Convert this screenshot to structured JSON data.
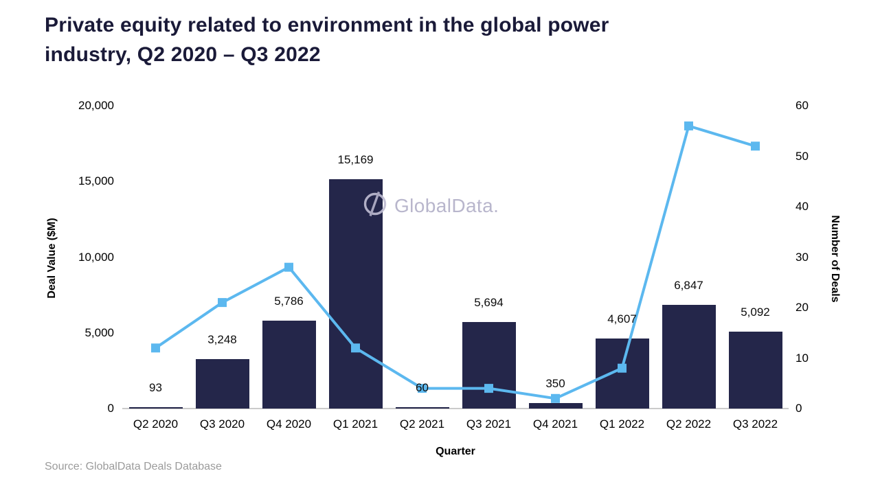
{
  "title": {
    "line1": "Private equity related to environment in the global power",
    "line2": "industry, Q2 2020 – Q3 2022"
  },
  "watermark": {
    "icon": "globaldata-circle-slash-logo",
    "text": "GlobalData."
  },
  "source_note": "Source: GlobalData Deals Database",
  "colors": {
    "bar": "#24264a",
    "line": "#5cb8ef",
    "title_text": "#1a1a38",
    "axis_line": "#cbcbcb",
    "watermark": "#b3b0c8",
    "source_text": "#9b9b9b",
    "tick_text": "#000000"
  },
  "chart_data": {
    "type": "bar+line",
    "title": "Private equity related to environment in the global power industry, Q2 2020 – Q3 2022",
    "categories": [
      "Q2 2020",
      "Q3 2020",
      "Q4 2020",
      "Q1 2021",
      "Q2 2021",
      "Q3 2021",
      "Q4 2021",
      "Q1 2022",
      "Q2 2022",
      "Q3 2022"
    ],
    "series": [
      {
        "name": "Deal Value ($M)",
        "chart_type": "bar",
        "axis": "left",
        "values": [
          93,
          3248,
          5786,
          15169,
          60,
          5694,
          350,
          4607,
          6847,
          5092
        ],
        "data_labels": [
          "93",
          "3,248",
          "5,786",
          "15,169",
          "60",
          "5,694",
          "350",
          "4,607",
          "6,847",
          "5,092"
        ]
      },
      {
        "name": "Number of Deals",
        "chart_type": "line",
        "axis": "right",
        "marker": "square",
        "values": [
          12,
          21,
          28,
          12,
          4,
          4,
          2,
          8,
          56,
          52
        ]
      }
    ],
    "xlabel": "Quarter",
    "left_axis": {
      "label": "Deal Value ($M)",
      "min": 0,
      "max": 20000,
      "tick_interval": 5000,
      "ticks": [
        "0",
        "5,000",
        "10,000",
        "15,000",
        "20,000"
      ]
    },
    "right_axis": {
      "label": "Number of Deals",
      "min": 0,
      "max": 60,
      "tick_interval": 10,
      "ticks": [
        "0",
        "10",
        "20",
        "30",
        "40",
        "50",
        "60"
      ]
    },
    "grid": false,
    "legend": "none"
  }
}
